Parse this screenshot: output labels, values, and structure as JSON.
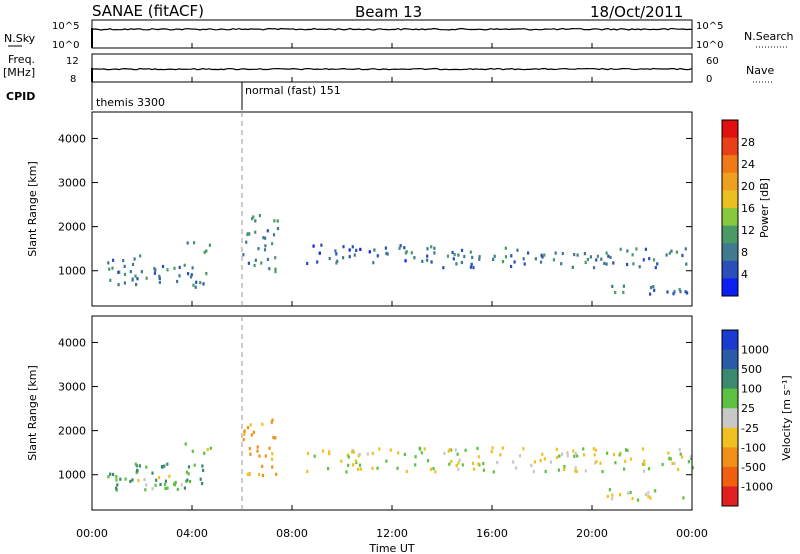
{
  "header": {
    "station": "SANAE (fitACF)",
    "beam": "Beam 13",
    "date": "18/Oct/2011"
  },
  "panel_labels": {
    "nsky": "N.Sky",
    "nsky_ticks": [
      "10^5",
      "10^0"
    ],
    "nsearch": "N.Search",
    "nsearch_ticks": [
      "10^5",
      "10^0"
    ],
    "freq_line1": "Freq.",
    "freq_line2": "[MHz]",
    "freq_ticks": [
      "12",
      "8"
    ],
    "nave": "Nave",
    "nave_ticks": [
      "60",
      "0"
    ],
    "cpid": "CPID",
    "cpid_modes": [
      {
        "label": "themis 3300",
        "start_hour": 0.0
      },
      {
        "label": "normal (fast) 151",
        "start_hour": 6.0
      }
    ]
  },
  "axes": {
    "xlabel": "Time UT",
    "x_ticks": [
      "00:00",
      "04:00",
      "08:00",
      "12:00",
      "16:00",
      "20:00",
      "00:00"
    ],
    "x_tick_hours": [
      0,
      4,
      8,
      12,
      16,
      20,
      24
    ],
    "ylabel": "Slant Range [km]",
    "y_ticks": [
      "1000",
      "2000",
      "3000",
      "4000"
    ],
    "y_tick_values": [
      1000,
      2000,
      3000,
      4000
    ],
    "ylim": [
      200,
      4600
    ],
    "xlim": [
      0,
      24
    ]
  },
  "colorbars": {
    "power": {
      "label": "Power [dB]",
      "ticks": [
        "4",
        "8",
        "12",
        "16",
        "20",
        "24",
        "28"
      ],
      "colors": [
        "#0a1ff0",
        "#2a4fb8",
        "#3f7a8f",
        "#4a9a68",
        "#88c83c",
        "#e8c020",
        "#f0a020",
        "#f07a18",
        "#e84018",
        "#e01010"
      ]
    },
    "velocity": {
      "label": "Velocity [m s⁻¹]",
      "ticks": [
        "1000",
        "500",
        "100",
        "25",
        "-25",
        "-100",
        "-500",
        "-1000"
      ],
      "colors": [
        "#1a3ad0",
        "#2a5aa8",
        "#3a8a70",
        "#5cc040",
        "#c8c8c8",
        "#f0c020",
        "#f09018",
        "#f06010",
        "#e02020"
      ]
    }
  },
  "chart_data": [
    {
      "type": "heatmap",
      "title": "",
      "xlabel": "",
      "ylabel": "Slant Range [km]",
      "ylim": [
        200,
        4600
      ],
      "xlim": [
        0,
        24
      ],
      "colorbar": "Power [dB]",
      "colorbar_ticks": [
        4,
        8,
        12,
        16,
        20,
        24,
        28
      ],
      "regions": [
        {
          "t0": 0.6,
          "t1": 2.0,
          "r0": 650,
          "r1": 1400,
          "power": 7
        },
        {
          "t0": 1.5,
          "t1": 4.6,
          "r0": 650,
          "r1": 1200,
          "power": 7
        },
        {
          "t0": 3.5,
          "t1": 4.8,
          "r0": 1450,
          "r1": 1700,
          "power": 8
        },
        {
          "t0": 6.0,
          "t1": 7.4,
          "r0": 1000,
          "r1": 2300,
          "power": 7
        },
        {
          "t0": 8.5,
          "t1": 14.0,
          "r0": 1200,
          "r1": 1650,
          "power": 5
        },
        {
          "t0": 14.0,
          "t1": 24.0,
          "r0": 1100,
          "r1": 1550,
          "power": 6
        },
        {
          "t0": 20.5,
          "t1": 24.0,
          "r0": 450,
          "r1": 700,
          "power": 6
        }
      ]
    },
    {
      "type": "heatmap",
      "title": "",
      "xlabel": "Time UT",
      "ylabel": "Slant Range [km]",
      "ylim": [
        200,
        4600
      ],
      "xlim": [
        0,
        24
      ],
      "colorbar": "Velocity [m s⁻¹]",
      "colorbar_ticks": [
        1000,
        500,
        100,
        25,
        -25,
        -100,
        -500,
        -1000
      ],
      "regions": [
        {
          "t0": 0.6,
          "t1": 4.6,
          "r0": 650,
          "r1": 1300,
          "velocity": 150
        },
        {
          "t0": 1.8,
          "t1": 3.6,
          "r0": 700,
          "r1": 1100,
          "velocity": 0
        },
        {
          "t0": 6.0,
          "t1": 7.4,
          "r0": 1000,
          "r1": 2300,
          "velocity": -150
        },
        {
          "t0": 3.5,
          "t1": 4.8,
          "r0": 1500,
          "r1": 1750,
          "velocity": 0
        },
        {
          "t0": 8.5,
          "t1": 24.0,
          "r0": 1100,
          "r1": 1650,
          "velocity": 0
        },
        {
          "t0": 20.5,
          "t1": 24.0,
          "r0": 450,
          "r1": 700,
          "velocity": 0
        }
      ]
    }
  ]
}
